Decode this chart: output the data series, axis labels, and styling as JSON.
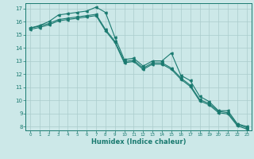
{
  "xlabel": "Humidex (Indice chaleur)",
  "background_color": "#cce8e8",
  "grid_color": "#aacccc",
  "line_color": "#1a7a70",
  "xlim": [
    -0.5,
    23.5
  ],
  "ylim": [
    7.7,
    17.4
  ],
  "yticks": [
    8,
    9,
    10,
    11,
    12,
    13,
    14,
    15,
    16,
    17
  ],
  "xticks": [
    0,
    1,
    2,
    3,
    4,
    5,
    6,
    7,
    8,
    9,
    10,
    11,
    12,
    13,
    14,
    15,
    16,
    17,
    18,
    19,
    20,
    21,
    22,
    23
  ],
  "line1_x": [
    0,
    1,
    2,
    3,
    4,
    5,
    6,
    7,
    8,
    9,
    10,
    11,
    12,
    13,
    14,
    15,
    16,
    17,
    18,
    19,
    20,
    21,
    22,
    23
  ],
  "line1_y": [
    15.5,
    15.7,
    16.0,
    16.5,
    16.6,
    16.7,
    16.8,
    17.1,
    16.7,
    14.8,
    13.1,
    13.2,
    12.6,
    13.0,
    13.0,
    13.6,
    11.9,
    11.5,
    10.3,
    9.9,
    9.2,
    9.2,
    8.2,
    8.0
  ],
  "line2_x": [
    0,
    1,
    2,
    3,
    4,
    5,
    6,
    7,
    8,
    9,
    10,
    11,
    12,
    13,
    14,
    15,
    16,
    17,
    18,
    19,
    20,
    21,
    22,
    23
  ],
  "line2_y": [
    15.5,
    15.65,
    15.85,
    16.15,
    16.25,
    16.35,
    16.45,
    16.55,
    15.4,
    14.5,
    12.95,
    13.05,
    12.45,
    12.85,
    12.85,
    12.45,
    11.7,
    11.15,
    10.05,
    9.75,
    9.15,
    9.05,
    8.15,
    7.9
  ],
  "line3_x": [
    0,
    1,
    2,
    3,
    4,
    5,
    6,
    7,
    8,
    9,
    10,
    11,
    12,
    13,
    14,
    15,
    16,
    17,
    18,
    19,
    20,
    21,
    22,
    23
  ],
  "line3_y": [
    15.4,
    15.55,
    15.75,
    16.05,
    16.15,
    16.25,
    16.35,
    16.45,
    15.3,
    14.4,
    12.85,
    12.95,
    12.35,
    12.75,
    12.75,
    12.35,
    11.6,
    11.05,
    9.95,
    9.65,
    9.05,
    8.95,
    8.05,
    7.8
  ]
}
